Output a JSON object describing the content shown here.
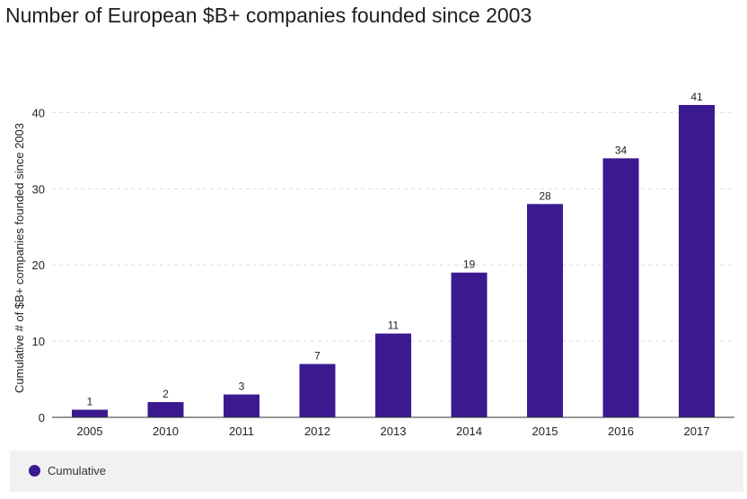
{
  "chart_data": {
    "type": "bar",
    "title": "Number of European $B+ companies founded since 2003",
    "xlabel": "",
    "ylabel": "Cumulative # of $B+ companies founded since 2003",
    "categories": [
      "2005",
      "2010",
      "2011",
      "2012",
      "2013",
      "2014",
      "2015",
      "2016",
      "2017"
    ],
    "series": [
      {
        "name": "Cumulative",
        "values": [
          1,
          2,
          3,
          7,
          11,
          19,
          28,
          34,
          41
        ]
      }
    ],
    "ylim": [
      0,
      43
    ],
    "yticks": [
      0,
      10,
      20,
      30,
      40
    ],
    "grid": true,
    "legend_position": "bottom-left",
    "data_labels": true,
    "colors": {
      "bar": "#3b1a8f",
      "grid": "#dddddd",
      "axis": "#333333"
    }
  }
}
